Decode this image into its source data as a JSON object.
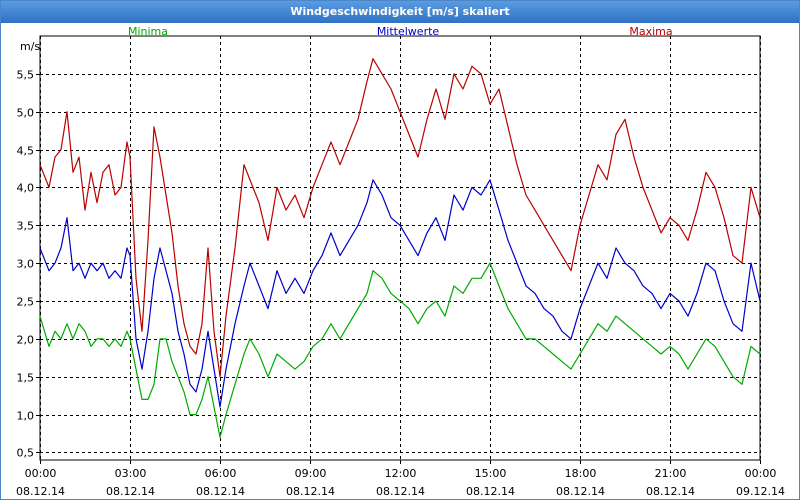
{
  "window": {
    "title": "Windgeschwindigkeit [m/s] skaliert"
  },
  "colors": {
    "minima": "#00aa00",
    "mittelwerte": "#0000cc",
    "maxima": "#bb0000",
    "grid": "#000000",
    "titlebar": "#3a7fd0"
  },
  "chart_data": {
    "type": "line",
    "title": "Windgeschwindigkeit [m/s] skaliert",
    "ylabel": "m/s",
    "xlabel": "",
    "ylim": [
      0.4,
      6.0
    ],
    "xlim": [
      0,
      24
    ],
    "yticks": [
      {
        "v": 0.5,
        "label": "0,5"
      },
      {
        "v": 1.0,
        "label": "1,0"
      },
      {
        "v": 1.5,
        "label": "1,5"
      },
      {
        "v": 2.0,
        "label": "2,0"
      },
      {
        "v": 2.5,
        "label": "2,5"
      },
      {
        "v": 3.0,
        "label": "3,0"
      },
      {
        "v": 3.5,
        "label": "3,5"
      },
      {
        "v": 4.0,
        "label": "4,0"
      },
      {
        "v": 4.5,
        "label": "4,5"
      },
      {
        "v": 5.0,
        "label": "5,0"
      },
      {
        "v": 5.5,
        "label": "5,5"
      }
    ],
    "xticks": [
      {
        "v": 0,
        "time": "00:00",
        "date": "08.12.14"
      },
      {
        "v": 3,
        "time": "03:00",
        "date": "08.12.14"
      },
      {
        "v": 6,
        "time": "06:00",
        "date": "08.12.14"
      },
      {
        "v": 9,
        "time": "09:00",
        "date": "08.12.14"
      },
      {
        "v": 12,
        "time": "12:00",
        "date": "08.12.14"
      },
      {
        "v": 15,
        "time": "15:00",
        "date": "08.12.14"
      },
      {
        "v": 18,
        "time": "18:00",
        "date": "08.12.14"
      },
      {
        "v": 21,
        "time": "21:00",
        "date": "08.12.14"
      },
      {
        "v": 24,
        "time": "00:00",
        "date": "09.12.14"
      }
    ],
    "grid": true,
    "legend_placement": "top",
    "series": [
      {
        "name": "Minima",
        "color": "#00aa00",
        "points": [
          [
            0.0,
            2.3
          ],
          [
            0.3,
            1.9
          ],
          [
            0.5,
            2.1
          ],
          [
            0.7,
            2.0
          ],
          [
            0.9,
            2.2
          ],
          [
            1.1,
            2.0
          ],
          [
            1.3,
            2.2
          ],
          [
            1.5,
            2.1
          ],
          [
            1.7,
            1.9
          ],
          [
            1.9,
            2.0
          ],
          [
            2.1,
            2.0
          ],
          [
            2.3,
            1.9
          ],
          [
            2.5,
            2.0
          ],
          [
            2.7,
            1.9
          ],
          [
            2.9,
            2.1
          ],
          [
            3.0,
            2.0
          ],
          [
            3.2,
            1.6
          ],
          [
            3.4,
            1.2
          ],
          [
            3.6,
            1.2
          ],
          [
            3.8,
            1.4
          ],
          [
            4.0,
            2.0
          ],
          [
            4.2,
            2.0
          ],
          [
            4.4,
            1.7
          ],
          [
            4.6,
            1.5
          ],
          [
            4.8,
            1.3
          ],
          [
            5.0,
            1.0
          ],
          [
            5.2,
            1.0
          ],
          [
            5.4,
            1.2
          ],
          [
            5.6,
            1.5
          ],
          [
            5.8,
            1.1
          ],
          [
            6.0,
            0.7
          ],
          [
            6.2,
            1.0
          ],
          [
            6.5,
            1.4
          ],
          [
            6.8,
            1.8
          ],
          [
            7.0,
            2.0
          ],
          [
            7.3,
            1.8
          ],
          [
            7.6,
            1.5
          ],
          [
            7.9,
            1.8
          ],
          [
            8.2,
            1.7
          ],
          [
            8.5,
            1.6
          ],
          [
            8.8,
            1.7
          ],
          [
            9.1,
            1.9
          ],
          [
            9.4,
            2.0
          ],
          [
            9.7,
            2.2
          ],
          [
            10.0,
            2.0
          ],
          [
            10.3,
            2.2
          ],
          [
            10.6,
            2.4
          ],
          [
            10.9,
            2.6
          ],
          [
            11.1,
            2.9
          ],
          [
            11.4,
            2.8
          ],
          [
            11.7,
            2.6
          ],
          [
            12.0,
            2.5
          ],
          [
            12.3,
            2.4
          ],
          [
            12.6,
            2.2
          ],
          [
            12.9,
            2.4
          ],
          [
            13.2,
            2.5
          ],
          [
            13.5,
            2.3
          ],
          [
            13.8,
            2.7
          ],
          [
            14.1,
            2.6
          ],
          [
            14.4,
            2.8
          ],
          [
            14.7,
            2.8
          ],
          [
            15.0,
            3.0
          ],
          [
            15.3,
            2.7
          ],
          [
            15.6,
            2.4
          ],
          [
            15.9,
            2.2
          ],
          [
            16.2,
            2.0
          ],
          [
            16.5,
            2.0
          ],
          [
            16.8,
            1.9
          ],
          [
            17.1,
            1.8
          ],
          [
            17.4,
            1.7
          ],
          [
            17.7,
            1.6
          ],
          [
            18.0,
            1.8
          ],
          [
            18.3,
            2.0
          ],
          [
            18.6,
            2.2
          ],
          [
            18.9,
            2.1
          ],
          [
            19.2,
            2.3
          ],
          [
            19.5,
            2.2
          ],
          [
            19.8,
            2.1
          ],
          [
            20.1,
            2.0
          ],
          [
            20.4,
            1.9
          ],
          [
            20.7,
            1.8
          ],
          [
            21.0,
            1.9
          ],
          [
            21.3,
            1.8
          ],
          [
            21.6,
            1.6
          ],
          [
            21.9,
            1.8
          ],
          [
            22.2,
            2.0
          ],
          [
            22.5,
            1.9
          ],
          [
            22.8,
            1.7
          ],
          [
            23.1,
            1.5
          ],
          [
            23.4,
            1.4
          ],
          [
            23.7,
            1.9
          ],
          [
            24.0,
            1.8
          ]
        ]
      },
      {
        "name": "Mittelwerte",
        "color": "#0000cc",
        "points": [
          [
            0.0,
            3.2
          ],
          [
            0.3,
            2.9
          ],
          [
            0.5,
            3.0
          ],
          [
            0.7,
            3.2
          ],
          [
            0.9,
            3.6
          ],
          [
            1.1,
            2.9
          ],
          [
            1.3,
            3.0
          ],
          [
            1.5,
            2.8
          ],
          [
            1.7,
            3.0
          ],
          [
            1.9,
            2.9
          ],
          [
            2.1,
            3.0
          ],
          [
            2.3,
            2.8
          ],
          [
            2.5,
            2.9
          ],
          [
            2.7,
            2.8
          ],
          [
            2.9,
            3.2
          ],
          [
            3.0,
            3.1
          ],
          [
            3.2,
            2.0
          ],
          [
            3.4,
            1.6
          ],
          [
            3.6,
            2.1
          ],
          [
            3.8,
            2.8
          ],
          [
            4.0,
            3.2
          ],
          [
            4.2,
            2.9
          ],
          [
            4.4,
            2.6
          ],
          [
            4.6,
            2.1
          ],
          [
            4.8,
            1.8
          ],
          [
            5.0,
            1.4
          ],
          [
            5.2,
            1.3
          ],
          [
            5.4,
            1.6
          ],
          [
            5.6,
            2.1
          ],
          [
            5.8,
            1.6
          ],
          [
            6.0,
            1.1
          ],
          [
            6.2,
            1.6
          ],
          [
            6.5,
            2.2
          ],
          [
            6.8,
            2.7
          ],
          [
            7.0,
            3.0
          ],
          [
            7.3,
            2.7
          ],
          [
            7.6,
            2.4
          ],
          [
            7.9,
            2.9
          ],
          [
            8.2,
            2.6
          ],
          [
            8.5,
            2.8
          ],
          [
            8.8,
            2.6
          ],
          [
            9.1,
            2.9
          ],
          [
            9.4,
            3.1
          ],
          [
            9.7,
            3.4
          ],
          [
            10.0,
            3.1
          ],
          [
            10.3,
            3.3
          ],
          [
            10.6,
            3.5
          ],
          [
            10.9,
            3.8
          ],
          [
            11.1,
            4.1
          ],
          [
            11.4,
            3.9
          ],
          [
            11.7,
            3.6
          ],
          [
            12.0,
            3.5
          ],
          [
            12.3,
            3.3
          ],
          [
            12.6,
            3.1
          ],
          [
            12.9,
            3.4
          ],
          [
            13.2,
            3.6
          ],
          [
            13.5,
            3.3
          ],
          [
            13.8,
            3.9
          ],
          [
            14.1,
            3.7
          ],
          [
            14.4,
            4.0
          ],
          [
            14.7,
            3.9
          ],
          [
            15.0,
            4.1
          ],
          [
            15.3,
            3.7
          ],
          [
            15.6,
            3.3
          ],
          [
            15.9,
            3.0
          ],
          [
            16.2,
            2.7
          ],
          [
            16.5,
            2.6
          ],
          [
            16.8,
            2.4
          ],
          [
            17.1,
            2.3
          ],
          [
            17.4,
            2.1
          ],
          [
            17.7,
            2.0
          ],
          [
            18.0,
            2.4
          ],
          [
            18.3,
            2.7
          ],
          [
            18.6,
            3.0
          ],
          [
            18.9,
            2.8
          ],
          [
            19.2,
            3.2
          ],
          [
            19.5,
            3.0
          ],
          [
            19.8,
            2.9
          ],
          [
            20.1,
            2.7
          ],
          [
            20.4,
            2.6
          ],
          [
            20.7,
            2.4
          ],
          [
            21.0,
            2.6
          ],
          [
            21.3,
            2.5
          ],
          [
            21.6,
            2.3
          ],
          [
            21.9,
            2.6
          ],
          [
            22.2,
            3.0
          ],
          [
            22.5,
            2.9
          ],
          [
            22.8,
            2.5
          ],
          [
            23.1,
            2.2
          ],
          [
            23.4,
            2.1
          ],
          [
            23.7,
            3.0
          ],
          [
            24.0,
            2.5
          ]
        ]
      },
      {
        "name": "Maxima",
        "color": "#bb0000",
        "points": [
          [
            0.0,
            4.3
          ],
          [
            0.3,
            4.0
          ],
          [
            0.5,
            4.4
          ],
          [
            0.7,
            4.5
          ],
          [
            0.9,
            5.0
          ],
          [
            1.1,
            4.2
          ],
          [
            1.3,
            4.4
          ],
          [
            1.5,
            3.7
          ],
          [
            1.7,
            4.2
          ],
          [
            1.9,
            3.8
          ],
          [
            2.1,
            4.2
          ],
          [
            2.3,
            4.3
          ],
          [
            2.5,
            3.9
          ],
          [
            2.7,
            4.0
          ],
          [
            2.9,
            4.6
          ],
          [
            3.0,
            4.4
          ],
          [
            3.2,
            2.8
          ],
          [
            3.4,
            2.1
          ],
          [
            3.6,
            3.3
          ],
          [
            3.8,
            4.8
          ],
          [
            4.0,
            4.4
          ],
          [
            4.2,
            3.9
          ],
          [
            4.4,
            3.4
          ],
          [
            4.6,
            2.7
          ],
          [
            4.8,
            2.2
          ],
          [
            5.0,
            1.9
          ],
          [
            5.2,
            1.8
          ],
          [
            5.4,
            2.2
          ],
          [
            5.6,
            3.2
          ],
          [
            5.8,
            2.1
          ],
          [
            6.0,
            1.5
          ],
          [
            6.2,
            2.3
          ],
          [
            6.5,
            3.2
          ],
          [
            6.8,
            4.3
          ],
          [
            7.0,
            4.1
          ],
          [
            7.3,
            3.8
          ],
          [
            7.6,
            3.3
          ],
          [
            7.9,
            4.0
          ],
          [
            8.2,
            3.7
          ],
          [
            8.5,
            3.9
          ],
          [
            8.8,
            3.6
          ],
          [
            9.1,
            4.0
          ],
          [
            9.4,
            4.3
          ],
          [
            9.7,
            4.6
          ],
          [
            10.0,
            4.3
          ],
          [
            10.3,
            4.6
          ],
          [
            10.6,
            4.9
          ],
          [
            10.9,
            5.4
          ],
          [
            11.1,
            5.7
          ],
          [
            11.4,
            5.5
          ],
          [
            11.7,
            5.3
          ],
          [
            12.0,
            5.0
          ],
          [
            12.3,
            4.7
          ],
          [
            12.6,
            4.4
          ],
          [
            12.9,
            4.9
          ],
          [
            13.2,
            5.3
          ],
          [
            13.5,
            4.9
          ],
          [
            13.8,
            5.5
          ],
          [
            14.1,
            5.3
          ],
          [
            14.4,
            5.6
          ],
          [
            14.7,
            5.5
          ],
          [
            15.0,
            5.1
          ],
          [
            15.3,
            5.3
          ],
          [
            15.6,
            4.8
          ],
          [
            15.9,
            4.3
          ],
          [
            16.2,
            3.9
          ],
          [
            16.5,
            3.7
          ],
          [
            16.8,
            3.5
          ],
          [
            17.1,
            3.3
          ],
          [
            17.4,
            3.1
          ],
          [
            17.7,
            2.9
          ],
          [
            18.0,
            3.5
          ],
          [
            18.3,
            3.9
          ],
          [
            18.6,
            4.3
          ],
          [
            18.9,
            4.1
          ],
          [
            19.2,
            4.7
          ],
          [
            19.5,
            4.9
          ],
          [
            19.8,
            4.4
          ],
          [
            20.1,
            4.0
          ],
          [
            20.4,
            3.7
          ],
          [
            20.7,
            3.4
          ],
          [
            21.0,
            3.6
          ],
          [
            21.3,
            3.5
          ],
          [
            21.6,
            3.3
          ],
          [
            21.9,
            3.7
          ],
          [
            22.2,
            4.2
          ],
          [
            22.5,
            4.0
          ],
          [
            22.8,
            3.6
          ],
          [
            23.1,
            3.1
          ],
          [
            23.4,
            3.0
          ],
          [
            23.7,
            4.0
          ],
          [
            24.0,
            3.6
          ]
        ]
      }
    ]
  }
}
